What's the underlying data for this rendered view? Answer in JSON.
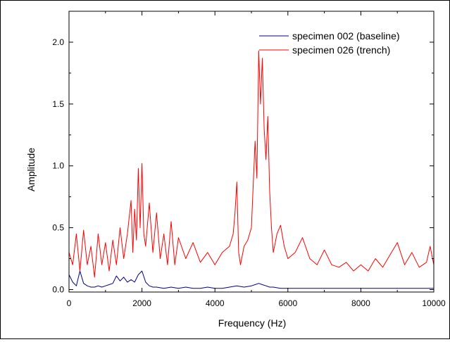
{
  "chart_data": {
    "type": "line",
    "title": "",
    "xlabel": "Frequency (Hz)",
    "ylabel": "Amplitude",
    "xlim": [
      0,
      10000
    ],
    "ylim": [
      -0.02,
      2.25
    ],
    "grid": false,
    "legend_position": "top-right",
    "xticks": [
      0,
      2000,
      4000,
      6000,
      8000,
      10000
    ],
    "xtick_labels": [
      "0",
      "2000",
      "4000",
      "6000",
      "8000",
      "10000"
    ],
    "yticks": [
      0.0,
      0.5,
      1.0,
      1.5,
      2.0
    ],
    "ytick_labels": [
      "0.0",
      "0.5",
      "1.0",
      "1.5",
      "2.0"
    ],
    "series": [
      {
        "name": "specimen 002 (baseline)",
        "color": "#00008b",
        "x": [
          0,
          100,
          200,
          300,
          400,
          500,
          600,
          700,
          800,
          900,
          1000,
          1100,
          1200,
          1300,
          1400,
          1500,
          1600,
          1700,
          1800,
          1900,
          2000,
          2100,
          2200,
          2300,
          2400,
          2600,
          2800,
          3000,
          3200,
          3400,
          3600,
          3800,
          4000,
          4200,
          4400,
          4600,
          4800,
          5000,
          5100,
          5200,
          5300,
          5400,
          5500,
          5600,
          5800,
          6000,
          6200,
          6400,
          6600,
          6800,
          7000,
          7500,
          8000,
          8500,
          9000,
          9500,
          10000
        ],
        "y": [
          0.12,
          0.06,
          0.03,
          0.15,
          0.05,
          0.03,
          0.02,
          0.02,
          0.03,
          0.02,
          0.03,
          0.04,
          0.05,
          0.11,
          0.07,
          0.1,
          0.06,
          0.08,
          0.06,
          0.12,
          0.15,
          0.06,
          0.03,
          0.02,
          0.02,
          0.01,
          0.02,
          0.01,
          0.02,
          0.01,
          0.01,
          0.02,
          0.01,
          0.01,
          0.02,
          0.03,
          0.02,
          0.03,
          0.04,
          0.05,
          0.04,
          0.03,
          0.02,
          0.02,
          0.01,
          0.01,
          0.01,
          0.01,
          0.01,
          0.01,
          0.01,
          0.01,
          0.01,
          0.01,
          0.01,
          0.01,
          0.01
        ]
      },
      {
        "name": "specimen 026 (trench)",
        "color": "#ff0000",
        "x": [
          0,
          100,
          200,
          300,
          400,
          500,
          600,
          700,
          800,
          900,
          1000,
          1100,
          1200,
          1300,
          1400,
          1500,
          1600,
          1700,
          1750,
          1800,
          1850,
          1900,
          1950,
          2000,
          2050,
          2100,
          2200,
          2300,
          2400,
          2500,
          2600,
          2700,
          2800,
          2900,
          3000,
          3200,
          3400,
          3600,
          3800,
          4000,
          4200,
          4400,
          4500,
          4550,
          4600,
          4650,
          4700,
          4800,
          4900,
          5000,
          5100,
          5150,
          5200,
          5250,
          5300,
          5350,
          5400,
          5450,
          5500,
          5550,
          5600,
          5700,
          5800,
          5900,
          6000,
          6200,
          6400,
          6600,
          6800,
          7000,
          7200,
          7400,
          7600,
          7800,
          8000,
          8200,
          8400,
          8600,
          8800,
          9000,
          9200,
          9400,
          9600,
          9800,
          9900,
          10000
        ],
        "y": [
          0.3,
          0.2,
          0.45,
          0.15,
          0.48,
          0.2,
          0.35,
          0.1,
          0.45,
          0.2,
          0.38,
          0.15,
          0.4,
          0.2,
          0.5,
          0.25,
          0.45,
          0.72,
          0.3,
          0.65,
          0.4,
          0.98,
          0.5,
          1.02,
          0.45,
          0.35,
          0.7,
          0.3,
          0.62,
          0.25,
          0.45,
          0.2,
          0.55,
          0.2,
          0.42,
          0.25,
          0.38,
          0.22,
          0.3,
          0.2,
          0.3,
          0.35,
          0.45,
          0.62,
          0.87,
          0.3,
          0.2,
          0.35,
          0.4,
          0.5,
          1.2,
          0.9,
          1.93,
          1.5,
          1.87,
          1.3,
          1.05,
          1.4,
          0.8,
          0.5,
          0.3,
          0.45,
          0.52,
          0.35,
          0.25,
          0.3,
          0.42,
          0.25,
          0.2,
          0.32,
          0.2,
          0.18,
          0.22,
          0.15,
          0.2,
          0.15,
          0.25,
          0.18,
          0.28,
          0.38,
          0.2,
          0.3,
          0.18,
          0.22,
          0.35,
          0.2
        ]
      }
    ]
  }
}
